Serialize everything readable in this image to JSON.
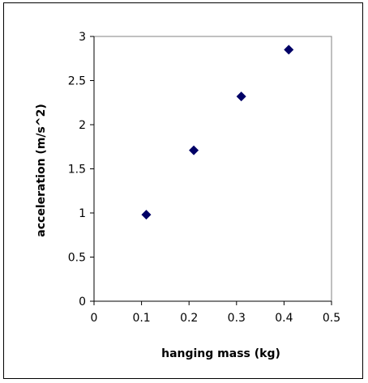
{
  "chart_data": {
    "type": "scatter",
    "title": "",
    "xlabel": "hanging mass (kg)",
    "ylabel": "acceleration (m/s^2)",
    "xlim": [
      0,
      0.5
    ],
    "ylim": [
      0,
      3
    ],
    "xticks": [
      "0",
      "0.1",
      "0.2",
      "0.3",
      "0.4",
      "0.5"
    ],
    "yticks": [
      "0",
      "0.5",
      "1",
      "1.5",
      "2",
      "2.5",
      "3"
    ],
    "grid": false,
    "legend": "none",
    "marker": "diamond",
    "marker_color": "#000066",
    "series": [
      {
        "x": [
          0.11,
          0.21,
          0.31,
          0.41
        ],
        "y": [
          0.98,
          1.71,
          2.32,
          2.85
        ]
      }
    ]
  }
}
